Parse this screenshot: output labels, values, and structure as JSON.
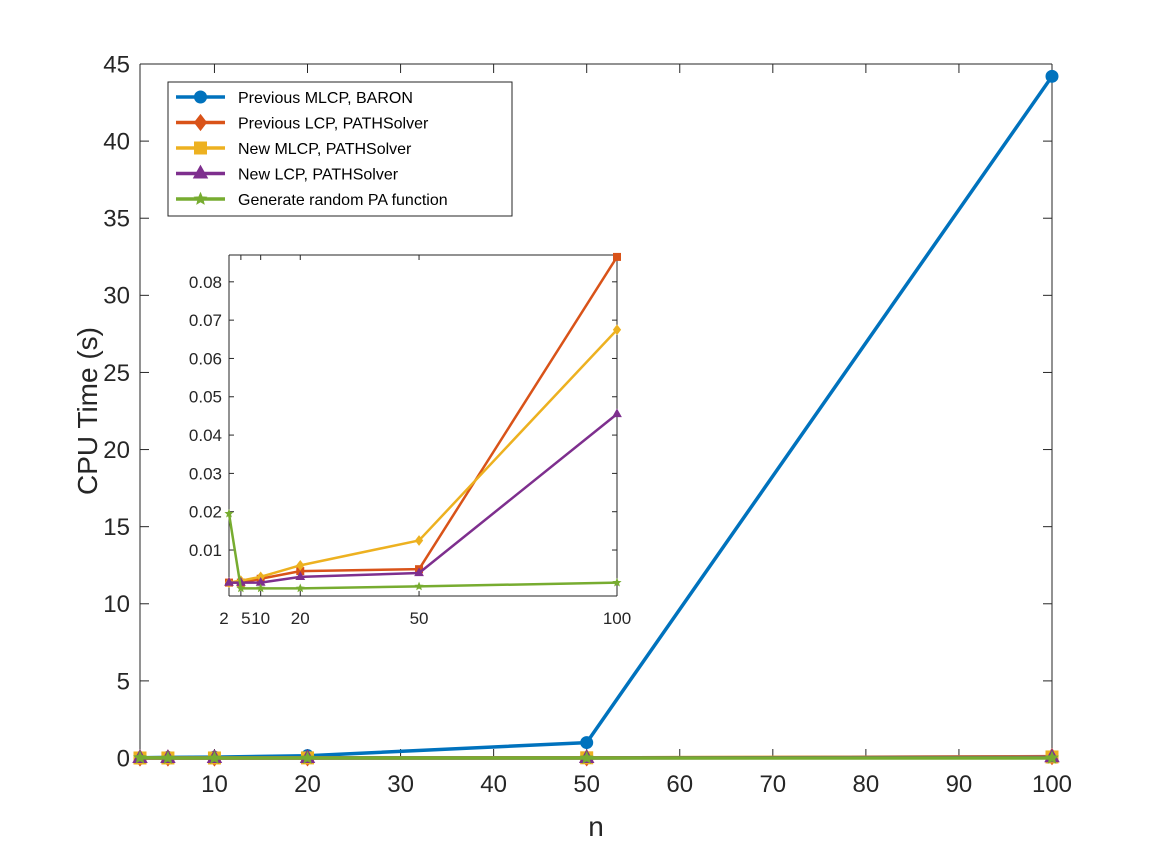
{
  "chart_data": [
    {
      "type": "line",
      "title": "",
      "xlabel": "n",
      "ylabel": "CPU Time (s)",
      "xlim": [
        2,
        100
      ],
      "ylim": [
        0,
        45
      ],
      "xticks": [
        10,
        20,
        30,
        40,
        50,
        60,
        70,
        80,
        90,
        100
      ],
      "yticks": [
        0,
        5,
        10,
        15,
        20,
        25,
        30,
        35,
        40,
        45
      ],
      "grid": false,
      "legend_position": "top-left",
      "x": [
        2,
        5,
        10,
        20,
        50,
        100
      ],
      "series": [
        {
          "name": "Previous MLCP, BARON",
          "color": "#0072BD",
          "marker": "circle",
          "values": [
            0.02,
            0.04,
            0.06,
            0.15,
            1.0,
            44.2
          ]
        },
        {
          "name": "Previous LCP, PATHSolver",
          "color": "#D95319",
          "marker": "diamond",
          "values": [
            0.001,
            0.001,
            0.002,
            0.004,
            0.005,
            0.086
          ]
        },
        {
          "name": "New MLCP, PATHSolver",
          "color": "#EDB120",
          "marker": "square",
          "values": [
            0.001,
            0.001,
            0.002,
            0.006,
            0.013,
            0.067
          ]
        },
        {
          "name": "New LCP, PATHSolver",
          "color": "#7E2F8E",
          "marker": "triangle",
          "values": [
            0.001,
            0.001,
            0.002,
            0.003,
            0.004,
            0.045
          ]
        },
        {
          "name": "Generate random PA function",
          "color": "#77AC30",
          "marker": "star",
          "values": [
            0.019,
            0.0,
            0.0,
            0.0,
            0.0005,
            0.0015
          ]
        }
      ]
    },
    {
      "type": "line",
      "title": "",
      "xlabel": "",
      "ylabel": "",
      "xlim": [
        2,
        100
      ],
      "ylim": [
        -0.002,
        0.087
      ],
      "xticks": [
        2,
        5,
        10,
        20,
        50,
        100
      ],
      "yticks": [
        0.01,
        0.02,
        0.03,
        0.04,
        0.05,
        0.06,
        0.07,
        0.08
      ],
      "grid": false,
      "x": [
        2,
        5,
        10,
        20,
        50,
        100
      ],
      "series": [
        {
          "name": "Previous LCP, PATHSolver",
          "color": "#D95319",
          "marker": "square",
          "values": [
            0.0015,
            0.0015,
            0.0025,
            0.0045,
            0.005,
            0.0865
          ]
        },
        {
          "name": "New MLCP, PATHSolver",
          "color": "#EDB120",
          "marker": "diamond",
          "values": [
            0.0015,
            0.002,
            0.003,
            0.006,
            0.0125,
            0.0675
          ]
        },
        {
          "name": "New LCP, PATHSolver",
          "color": "#7E2F8E",
          "marker": "triangle",
          "values": [
            0.0015,
            0.0015,
            0.0015,
            0.003,
            0.004,
            0.0455
          ]
        },
        {
          "name": "Generate random PA function",
          "color": "#77AC30",
          "marker": "star",
          "values": [
            0.0195,
            0.0,
            0.0,
            0.0,
            0.0005,
            0.0015
          ]
        }
      ]
    }
  ]
}
